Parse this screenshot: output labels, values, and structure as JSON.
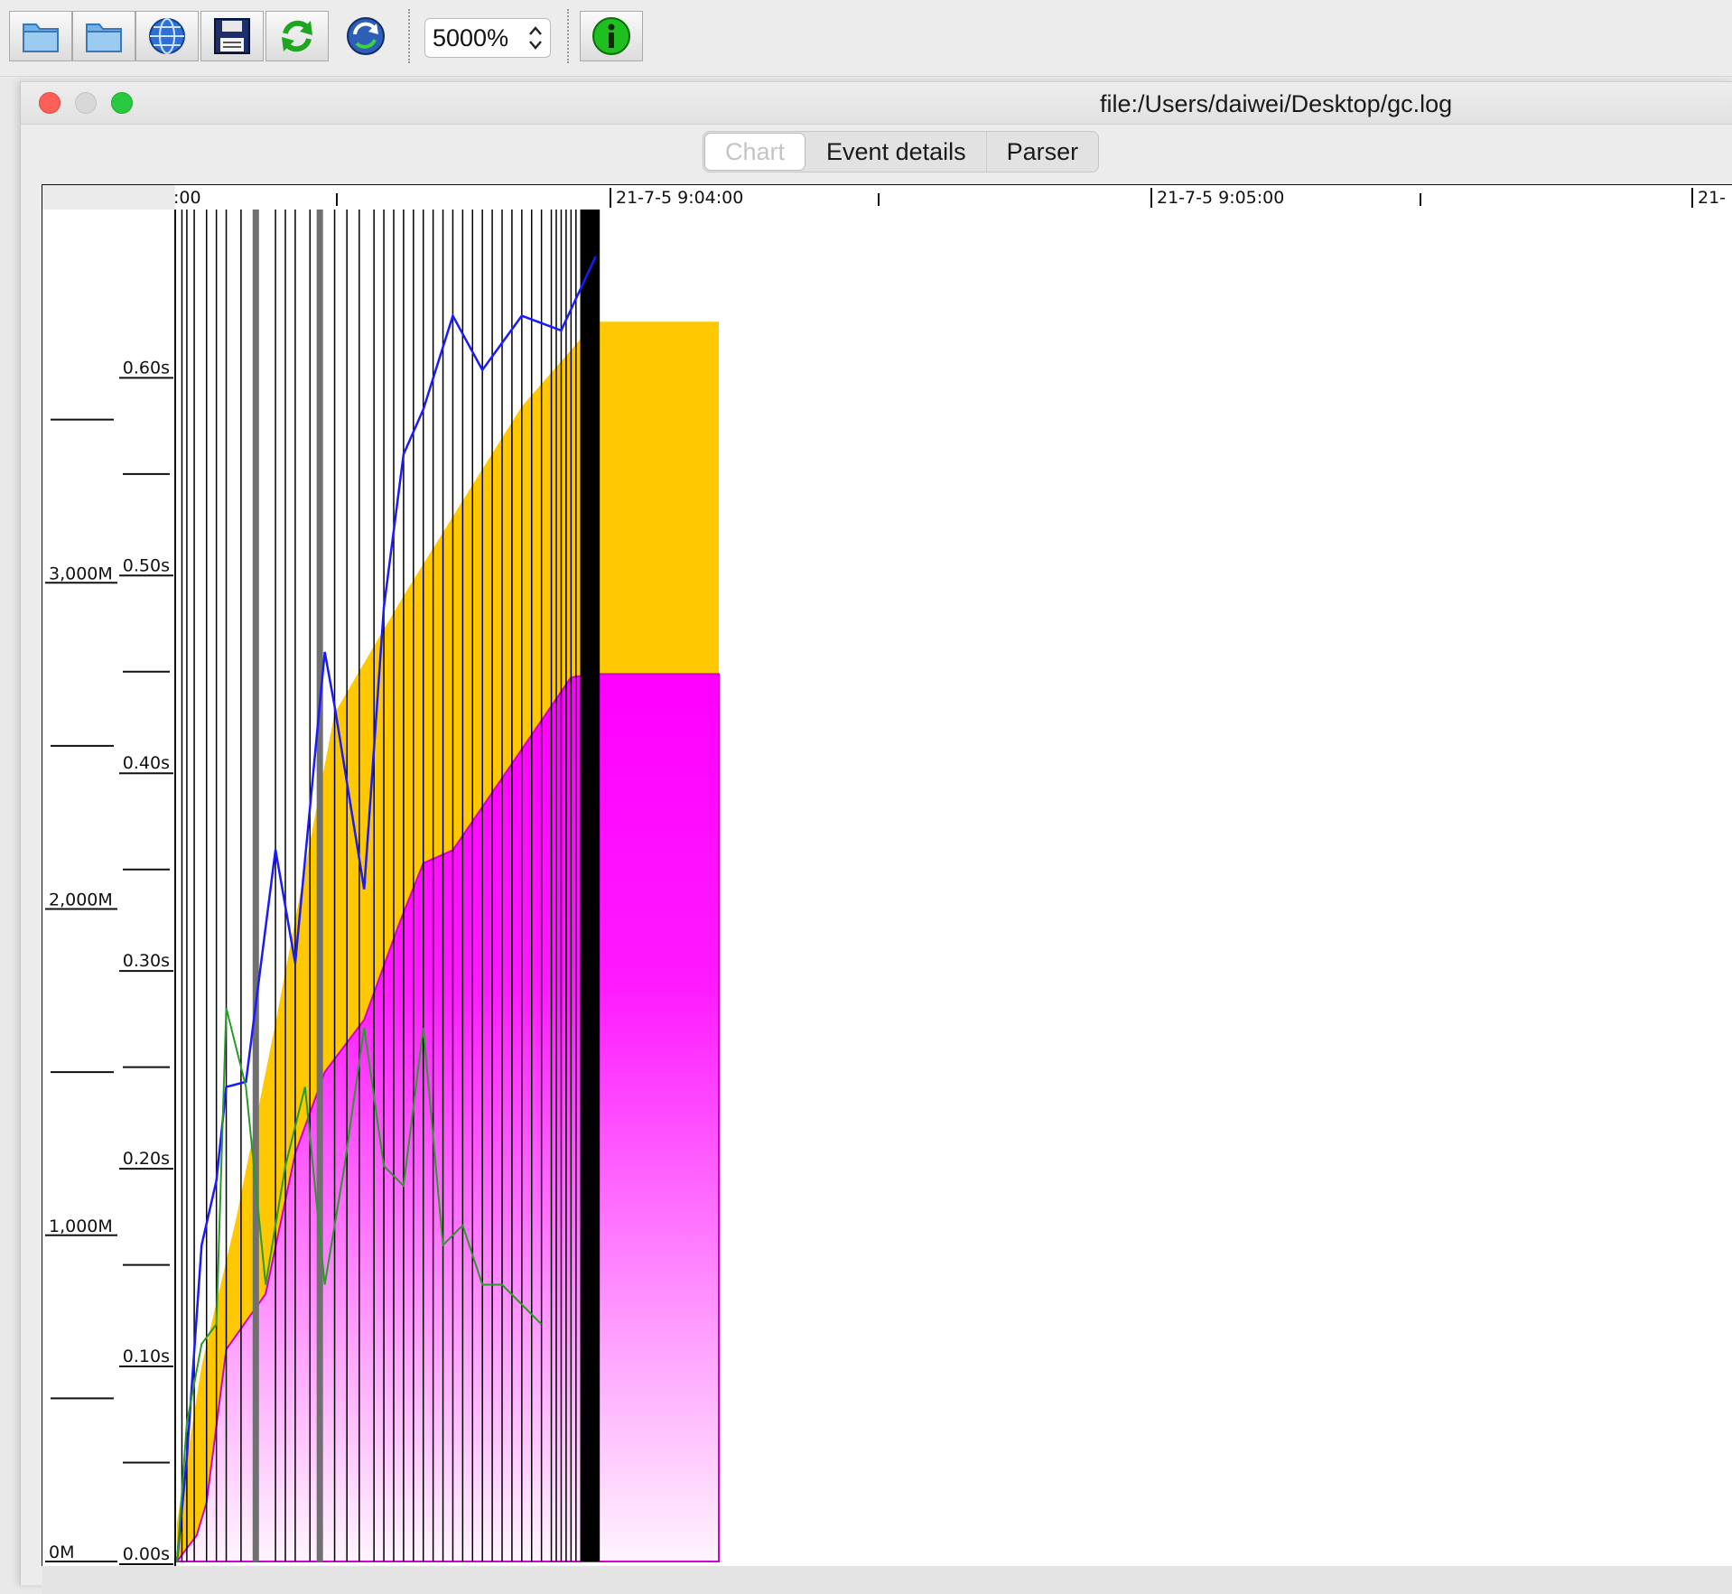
{
  "toolbar": {
    "buttons": [
      {
        "name": "open-file-icon",
        "label": ""
      },
      {
        "name": "open-folder-icon",
        "label": ""
      },
      {
        "name": "open-url-icon",
        "label": ""
      },
      {
        "name": "save-icon",
        "label": ""
      },
      {
        "name": "refresh-icon",
        "label": ""
      },
      {
        "name": "watch-icon",
        "label": ""
      }
    ],
    "zoom": "5000%",
    "info_icon": "info-icon"
  },
  "window": {
    "title": "file:/Users/daiwei/Desktop/gc.log",
    "tabs": [
      {
        "label": "Chart",
        "active": true
      },
      {
        "label": "Event details",
        "active": false
      },
      {
        "label": "Parser",
        "active": false
      }
    ]
  },
  "chart_data": {
    "type": "line",
    "x_tick_labels": [
      ":00",
      "21-7-5 9:04:00",
      "21-7-5 9:05:00",
      "21-"
    ],
    "y_time_ticks": [
      "0.60s",
      "0.50s",
      "0.40s",
      "0.30s",
      "0.20s",
      "0.10s",
      "0.00s"
    ],
    "y_memory_ticks": [
      "3,000M",
      "2,000M",
      "1,000M",
      "0M"
    ],
    "colors": {
      "total_heap": "#ffc800",
      "tenured": "#ff00ff",
      "used_heap": "#1a1aff",
      "gc_time": "#2a9a2a",
      "gc_event": "#000000",
      "full_gc": "#707070"
    },
    "total_heap": [
      [
        0.0,
        120
      ],
      [
        0.05,
        600
      ],
      [
        0.12,
        1050
      ],
      [
        0.2,
        1650
      ],
      [
        0.32,
        2600
      ],
      [
        0.46,
        2960
      ],
      [
        0.6,
        3300
      ],
      [
        0.7,
        3540
      ],
      [
        0.85,
        3800
      ],
      [
        1.1,
        3800
      ]
    ],
    "tenured": [
      [
        0.0,
        0
      ],
      [
        0.04,
        80
      ],
      [
        0.06,
        180
      ],
      [
        0.1,
        650
      ],
      [
        0.18,
        820
      ],
      [
        0.24,
        1250
      ],
      [
        0.3,
        1500
      ],
      [
        0.38,
        1660
      ],
      [
        0.45,
        1950
      ],
      [
        0.5,
        2140
      ],
      [
        0.56,
        2180
      ],
      [
        0.8,
        2710
      ],
      [
        0.85,
        2720
      ],
      [
        1.1,
        2720
      ]
    ],
    "used_heap_s": [
      [
        0.0,
        0.0
      ],
      [
        0.02,
        0.08
      ],
      [
        0.05,
        0.16
      ],
      [
        0.08,
        0.22
      ],
      [
        0.1,
        0.24
      ],
      [
        0.14,
        0.27
      ],
      [
        0.2,
        0.36
      ],
      [
        0.24,
        0.33
      ],
      [
        0.3,
        0.46
      ],
      [
        0.32,
        0.46
      ],
      [
        0.38,
        0.34
      ],
      [
        0.42,
        0.51
      ],
      [
        0.46,
        0.56
      ],
      [
        0.5,
        0.61
      ],
      [
        0.56,
        0.63
      ],
      [
        0.62,
        0.63
      ],
      [
        0.7,
        0.63
      ],
      [
        0.78,
        0.65
      ],
      [
        0.85,
        0.66
      ]
    ],
    "gc_time_s": [
      [
        0.0,
        0.0
      ],
      [
        0.02,
        0.07
      ],
      [
        0.05,
        0.11
      ],
      [
        0.08,
        0.12
      ],
      [
        0.1,
        0.28
      ],
      [
        0.14,
        0.24
      ],
      [
        0.18,
        0.14
      ],
      [
        0.22,
        0.2
      ],
      [
        0.26,
        0.24
      ],
      [
        0.3,
        0.14
      ],
      [
        0.34,
        0.2
      ],
      [
        0.38,
        0.27
      ],
      [
        0.42,
        0.2
      ],
      [
        0.46,
        0.19
      ],
      [
        0.5,
        0.27
      ],
      [
        0.54,
        0.16
      ],
      [
        0.58,
        0.17
      ],
      [
        0.62,
        0.14
      ],
      [
        0.66,
        0.14
      ],
      [
        0.7,
        0.13
      ],
      [
        0.74,
        0.12
      ]
    ],
    "gc_events_x": [
      0.01,
      0.02,
      0.035,
      0.06,
      0.08,
      0.1,
      0.13,
      0.16,
      0.2,
      0.22,
      0.24,
      0.27,
      0.29,
      0.32,
      0.345,
      0.37,
      0.4,
      0.42,
      0.44,
      0.46,
      0.48,
      0.5,
      0.52,
      0.54,
      0.56,
      0.58,
      0.6,
      0.62,
      0.64,
      0.66,
      0.68,
      0.7,
      0.72,
      0.74,
      0.76,
      0.77,
      0.78,
      0.79,
      0.8,
      0.81,
      0.82,
      0.83,
      0.84
    ],
    "full_gc_x": [
      0.16,
      0.29
    ]
  }
}
